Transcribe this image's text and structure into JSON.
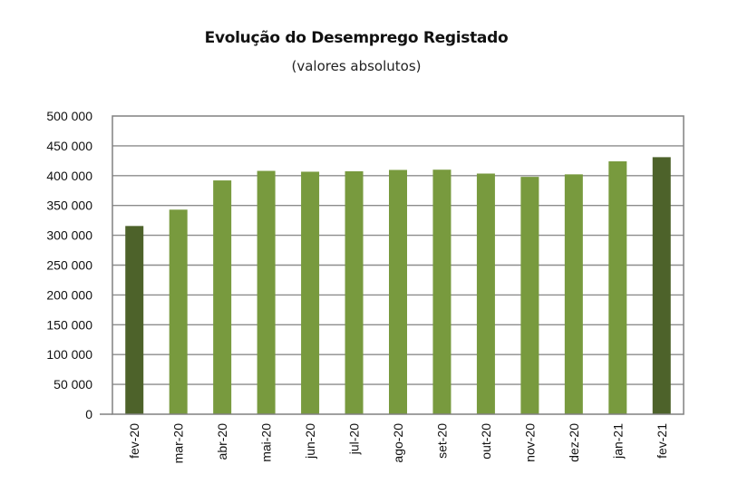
{
  "chart_data": {
    "type": "bar",
    "title": "Evolução do Desemprego Registado",
    "subtitle": "(valores absolutos)",
    "categories": [
      "fev-20",
      "mar-20",
      "abr-20",
      "mai-20",
      "jun-20",
      "jul-20",
      "ago-20",
      "set-20",
      "out-20",
      "nov-20",
      "dez-20",
      "jan-21",
      "fev-21"
    ],
    "values": [
      315600,
      343000,
      392000,
      408000,
      406600,
      407300,
      409600,
      410000,
      403500,
      398000,
      402200,
      424000,
      431000
    ],
    "highlighted": [
      "fev-20",
      "fev-21"
    ],
    "ylim": [
      0,
      500000
    ],
    "yticks": [
      0,
      50000,
      100000,
      150000,
      200000,
      250000,
      300000,
      350000,
      400000,
      450000,
      500000
    ],
    "ytick_labels": [
      "0",
      "50 000",
      "100 000",
      "150 000",
      "200 000",
      "250 000",
      "300 000",
      "350 000",
      "400 000",
      "450 000",
      "500 000"
    ],
    "grid": true,
    "colors": {
      "bar": "#789a3e",
      "highlight": "#4d622a",
      "grid": "#8c8c8c",
      "frame": "#808080"
    }
  }
}
